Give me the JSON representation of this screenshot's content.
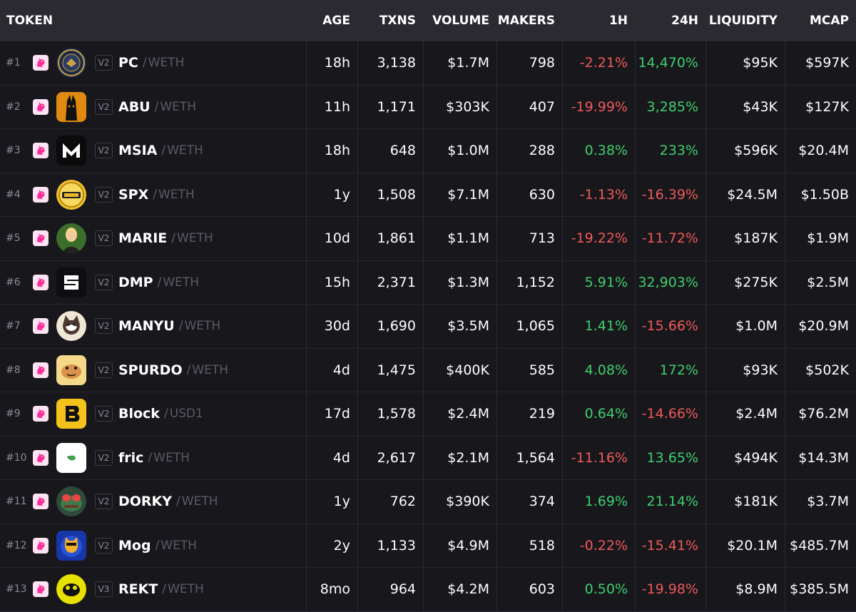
{
  "columns": {
    "token": "TOKEN",
    "age": "AGE",
    "txns": "TXNS",
    "volume": "VOLUME",
    "makers": "MAKERS",
    "h1": "1H",
    "h24": "24H",
    "liquidity": "LIQUIDITY",
    "mcap": "MCAP"
  },
  "colors": {
    "positive": "#3fcf6e",
    "negative": "#ef5a5a",
    "dex_badge": "#fce4f3"
  },
  "rows": [
    {
      "rank": "#1",
      "dex_icon": "uniswap-unicorn-icon",
      "logo_icon": "seal-emblem-logo",
      "version": "V2",
      "symbol": "PC",
      "quote": "WETH",
      "age": "18h",
      "txns": "3,138",
      "volume": "$1.7M",
      "makers": "798",
      "h1": "-2.21%",
      "h1_dir": "neg",
      "h24": "14,470%",
      "h24_dir": "pos",
      "liquidity": "$95K",
      "mcap": "$597K"
    },
    {
      "rank": "#2",
      "dex_icon": "uniswap-unicorn-icon",
      "logo_icon": "dog-anubis-logo",
      "version": "V2",
      "symbol": "ABU",
      "quote": "WETH",
      "age": "11h",
      "txns": "1,171",
      "volume": "$303K",
      "makers": "407",
      "h1": "-19.99%",
      "h1_dir": "neg",
      "h24": "3,285%",
      "h24_dir": "pos",
      "liquidity": "$43K",
      "mcap": "$127K"
    },
    {
      "rank": "#3",
      "dex_icon": "uniswap-unicorn-icon",
      "logo_icon": "letter-m-logo",
      "version": "V2",
      "symbol": "MSIA",
      "quote": "WETH",
      "age": "18h",
      "txns": "648",
      "volume": "$1.0M",
      "makers": "288",
      "h1": "0.38%",
      "h1_dir": "pos",
      "h24": "233%",
      "h24_dir": "pos",
      "liquidity": "$596K",
      "mcap": "$20.4M"
    },
    {
      "rank": "#4",
      "dex_icon": "uniswap-unicorn-icon",
      "logo_icon": "gold-coin-logo",
      "version": "V2",
      "symbol": "SPX",
      "quote": "WETH",
      "age": "1y",
      "txns": "1,508",
      "volume": "$7.1M",
      "makers": "630",
      "h1": "-1.13%",
      "h1_dir": "neg",
      "h24": "-16.39%",
      "h24_dir": "neg",
      "liquidity": "$24.5M",
      "mcap": "$1.50B"
    },
    {
      "rank": "#5",
      "dex_icon": "uniswap-unicorn-icon",
      "logo_icon": "portrait-logo",
      "version": "V2",
      "symbol": "MARIE",
      "quote": "WETH",
      "age": "10d",
      "txns": "1,861",
      "volume": "$1.1M",
      "makers": "713",
      "h1": "-19.22%",
      "h1_dir": "neg",
      "h24": "-11.72%",
      "h24_dir": "neg",
      "liquidity": "$187K",
      "mcap": "$1.9M"
    },
    {
      "rank": "#6",
      "dex_icon": "uniswap-unicorn-icon",
      "logo_icon": "bracket-s-logo",
      "version": "V2",
      "symbol": "DMP",
      "quote": "WETH",
      "age": "15h",
      "txns": "2,371",
      "volume": "$1.3M",
      "makers": "1,152",
      "h1": "5.91%",
      "h1_dir": "pos",
      "h24": "32,903%",
      "h24_dir": "pos",
      "liquidity": "$275K",
      "mcap": "$2.5M"
    },
    {
      "rank": "#7",
      "dex_icon": "uniswap-unicorn-icon",
      "logo_icon": "shiba-dog-logo",
      "version": "V2",
      "symbol": "MANYU",
      "quote": "WETH",
      "age": "30d",
      "txns": "1,690",
      "volume": "$3.5M",
      "makers": "1,065",
      "h1": "1.41%",
      "h1_dir": "pos",
      "h24": "-15.66%",
      "h24_dir": "neg",
      "liquidity": "$1.0M",
      "mcap": "$20.9M"
    },
    {
      "rank": "#8",
      "dex_icon": "uniswap-unicorn-icon",
      "logo_icon": "cartoon-face-logo",
      "version": "V2",
      "symbol": "SPURDO",
      "quote": "WETH",
      "age": "4d",
      "txns": "1,475",
      "volume": "$400K",
      "makers": "585",
      "h1": "4.08%",
      "h1_dir": "pos",
      "h24": "172%",
      "h24_dir": "pos",
      "liquidity": "$93K",
      "mcap": "$502K"
    },
    {
      "rank": "#9",
      "dex_icon": "uniswap-unicorn-icon",
      "logo_icon": "letter-b-logo",
      "version": "V2",
      "symbol": "Block",
      "quote": "USD1",
      "age": "17d",
      "txns": "1,578",
      "volume": "$2.4M",
      "makers": "219",
      "h1": "0.64%",
      "h1_dir": "pos",
      "h24": "-14.66%",
      "h24_dir": "neg",
      "liquidity": "$2.4M",
      "mcap": "$76.2M"
    },
    {
      "rank": "#10",
      "dex_icon": "uniswap-unicorn-icon",
      "logo_icon": "leaf-logo",
      "version": "V2",
      "symbol": "fric",
      "quote": "WETH",
      "age": "4d",
      "txns": "2,617",
      "volume": "$2.1M",
      "makers": "1,564",
      "h1": "-11.16%",
      "h1_dir": "neg",
      "h24": "13.65%",
      "h24_dir": "pos",
      "liquidity": "$494K",
      "mcap": "$14.3M"
    },
    {
      "rank": "#11",
      "dex_icon": "uniswap-unicorn-icon",
      "logo_icon": "frog-logo",
      "version": "V2",
      "symbol": "DORKY",
      "quote": "WETH",
      "age": "1y",
      "txns": "762",
      "volume": "$390K",
      "makers": "374",
      "h1": "1.69%",
      "h1_dir": "pos",
      "h24": "21.14%",
      "h24_dir": "pos",
      "liquidity": "$181K",
      "mcap": "$3.7M"
    },
    {
      "rank": "#12",
      "dex_icon": "uniswap-unicorn-icon",
      "logo_icon": "cat-logo",
      "version": "V2",
      "symbol": "Mog",
      "quote": "WETH",
      "age": "2y",
      "txns": "1,133",
      "volume": "$4.9M",
      "makers": "518",
      "h1": "-0.22%",
      "h1_dir": "neg",
      "h24": "-15.41%",
      "h24_dir": "neg",
      "liquidity": "$20.1M",
      "mcap": "$485.7M"
    },
    {
      "rank": "#13",
      "dex_icon": "uniswap-unicorn-icon",
      "logo_icon": "pepe-yellow-logo",
      "version": "V3",
      "symbol": "REKT",
      "quote": "WETH",
      "age": "8mo",
      "txns": "964",
      "volume": "$4.2M",
      "makers": "603",
      "h1": "0.50%",
      "h1_dir": "pos",
      "h24": "-19.98%",
      "h24_dir": "neg",
      "liquidity": "$8.9M",
      "mcap": "$385.5M"
    }
  ]
}
